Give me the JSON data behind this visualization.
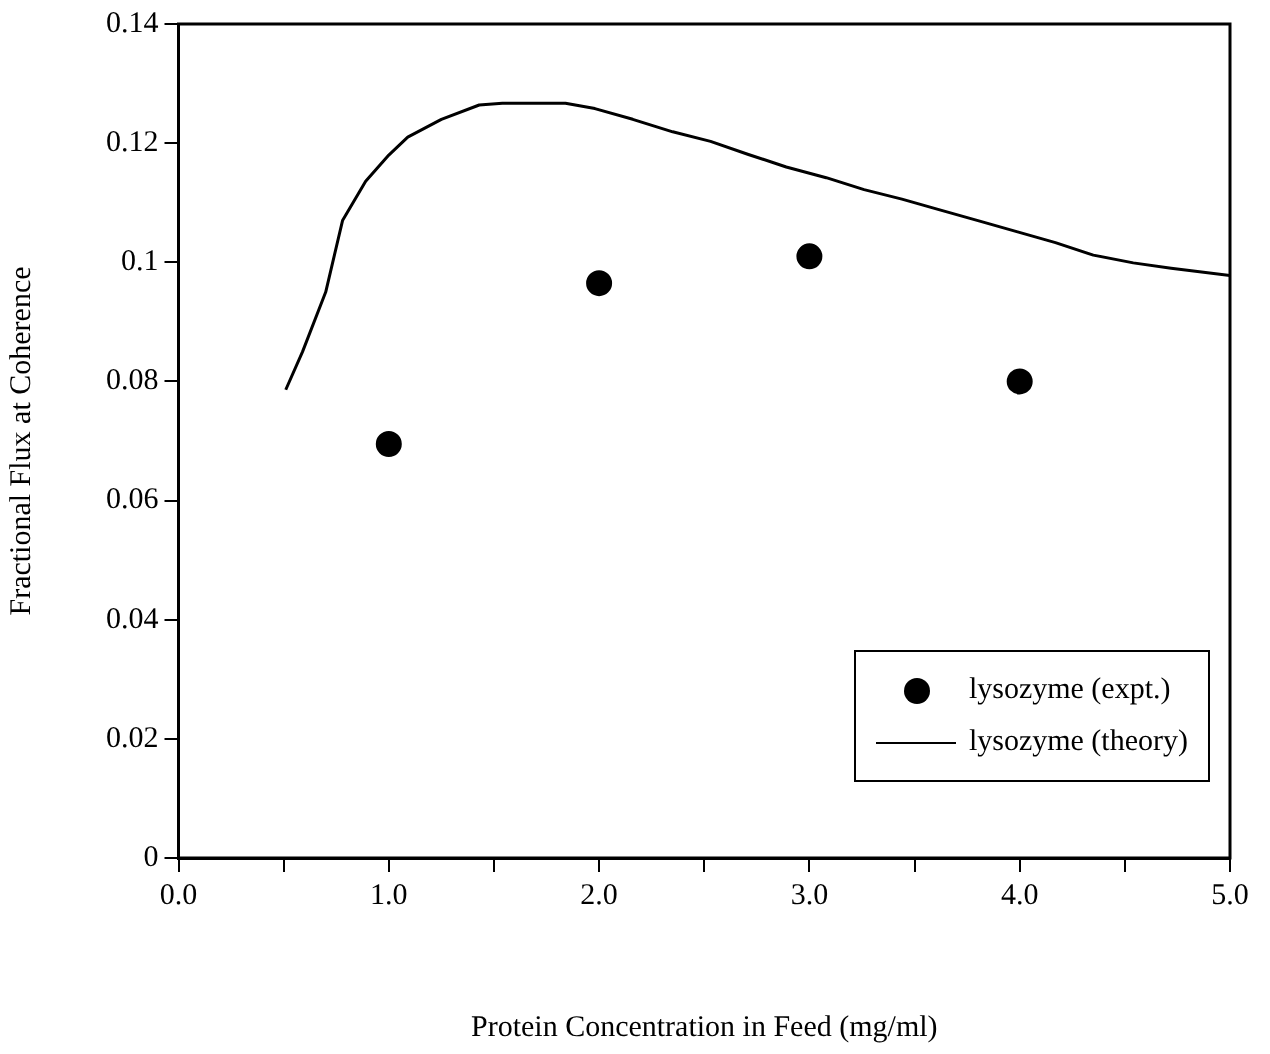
{
  "chart_data": {
    "type": "scatter",
    "xlabel": "Protein Concentration in Feed (mg/ml)",
    "ylabel": "Fractional Flux at Coherence",
    "xlim": [
      0,
      5
    ],
    "xticks": [
      {
        "value": 0,
        "label": "0.0"
      },
      {
        "value": 0.5,
        "label": null
      },
      {
        "value": 1,
        "label": "1.0"
      },
      {
        "value": 1.5,
        "label": null
      },
      {
        "value": 2,
        "label": "2.0"
      },
      {
        "value": 2.5,
        "label": null
      },
      {
        "value": 3,
        "label": "3.0"
      },
      {
        "value": 3.5,
        "label": null
      },
      {
        "value": 4,
        "label": "4.0"
      },
      {
        "value": 4.5,
        "label": null
      },
      {
        "value": 5,
        "label": "5.0"
      }
    ],
    "ylim": [
      0,
      0.14
    ],
    "yticks": [
      0,
      0.02,
      0.04,
      0.06,
      0.08,
      0.1,
      0.12,
      0.14
    ],
    "grid": false,
    "legend": "bottom right",
    "series": [
      {
        "name": "lysozyme (expt.)",
        "color": "#000000",
        "marker": "circle",
        "x": [
          1,
          2,
          3,
          4
        ],
        "values": [
          0.0695,
          0.0965,
          0.101,
          0.08
        ]
      },
      {
        "name": "lysozyme (theory)",
        "type": "line",
        "color": "#000000",
        "marker": "none",
        "line_style": "solid",
        "x": [
          0.51,
          0.59,
          0.7,
          0.78,
          0.89,
          1.0,
          1.09,
          1.25,
          1.43,
          1.54,
          1.84,
          1.98,
          2.16,
          2.35,
          2.53,
          2.71,
          2.89,
          3.08,
          3.26,
          3.44,
          3.62,
          3.81,
          3.99,
          4.17,
          4.35,
          4.54,
          4.72,
          5.0
        ],
        "values": [
          0.0786,
          0.085,
          0.095,
          0.107,
          0.1136,
          0.118,
          0.121,
          0.124,
          0.1264,
          0.1267,
          0.1267,
          0.1258,
          0.124,
          0.1219,
          0.1203,
          0.1181,
          0.116,
          0.1142,
          0.1122,
          0.1106,
          0.1088,
          0.1069,
          0.1051,
          0.1033,
          0.1012,
          0.0999,
          0.099,
          0.0978
        ]
      }
    ]
  }
}
